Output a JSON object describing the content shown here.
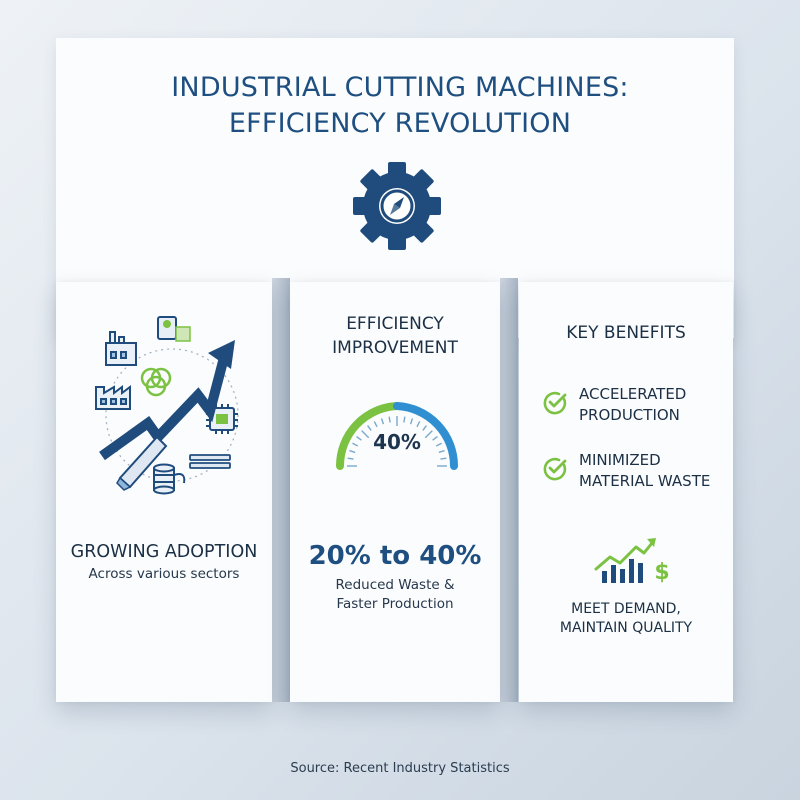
{
  "title": {
    "line1": "INDUSTRIAL CUTTING MACHINES:",
    "line2": "EFFICIENCY REVOLUTION"
  },
  "icons": {
    "header": "gear-compass-icon",
    "adoption": [
      "factory-icon",
      "material-roll-icon",
      "wire-coil-icon",
      "factory-icon",
      "microchip-icon",
      "blade-icon",
      "metal-bars-icon",
      "cable-spool-icon",
      "trend-arrow-icon"
    ],
    "benefit_check": "check-circle-icon",
    "demand": "growth-chart-dollar-icon"
  },
  "adoption": {
    "heading": "GROWING ADOPTION",
    "subtitle": "Across various sectors"
  },
  "efficiency": {
    "heading_line1": "EFFICIENCY",
    "heading_line2": "IMPROVEMENT",
    "gauge_label": "40%",
    "gauge_level": 0.4,
    "range": "20% to 40%",
    "desc_line1": "Reduced Waste &",
    "desc_line2": "Faster Production"
  },
  "benefits": {
    "heading": "KEY BENEFITS",
    "items": [
      {
        "line1": "ACCELERATED",
        "line2": "PRODUCTION"
      },
      {
        "line1": "MINIMIZED",
        "line2": "MATERIAL WASTE"
      }
    ],
    "footer_line1": "MEET DEMAND,",
    "footer_line2": "MAINTAIN QUALITY"
  },
  "source": "Source: Recent Industry Statistics",
  "colors": {
    "navy": "#1e4f80",
    "green": "#7cc242",
    "blue_accent": "#2f8fd0",
    "text_dark": "#1b2f45"
  }
}
